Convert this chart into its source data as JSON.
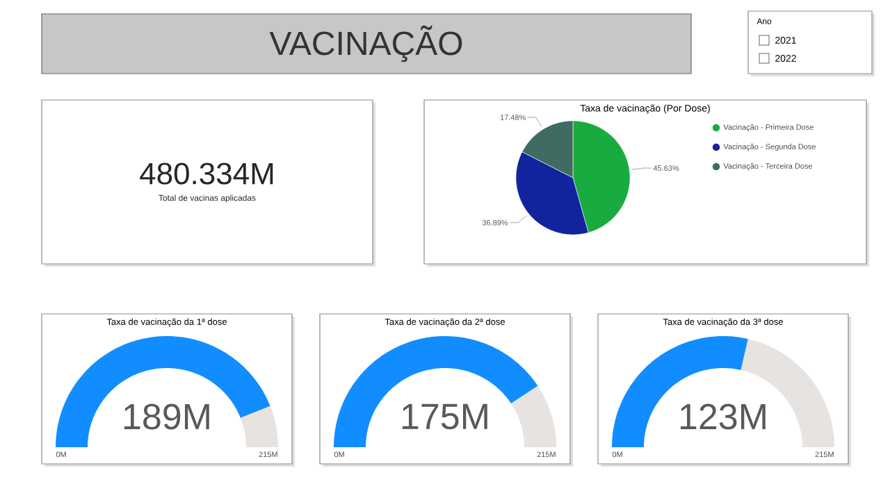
{
  "chart_data": [
    {
      "type": "other",
      "title": "VACINAÇÃO"
    },
    {
      "type": "other",
      "title": "Ano",
      "categories": [
        "2021",
        "2022"
      ]
    },
    {
      "type": "other",
      "annotations": [
        "480.334M",
        "Total de vacinas aplicadas"
      ]
    },
    {
      "type": "pie",
      "title": "Taxa de vacinação (Por Dose)",
      "categories": [
        "Vacinação - Primeira Dose",
        "Vacinação - Segunda Dose",
        "Vacinação - Terceira Dose"
      ],
      "values": [
        45.63,
        36.89,
        17.48
      ],
      "colors": [
        "#1aab40",
        "#12239e",
        "#3f6b63"
      ],
      "value_labels": [
        "45.63%",
        "36.89%",
        "17.48%"
      ],
      "legend": "right"
    },
    {
      "type": "donut",
      "title": "Taxa de vacinação da 1ª dose",
      "categories": [
        null,
        null
      ],
      "values": [
        189,
        26
      ],
      "colors": [
        "#118dff",
        "#e6e3e1"
      ],
      "value_labels": [
        "189M",
        null
      ],
      "annotations": [
        "0M",
        "215M"
      ]
    },
    {
      "type": "donut",
      "title": "Taxa de vacinação da 2ª dose",
      "categories": [
        null,
        null
      ],
      "values": [
        175,
        40
      ],
      "colors": [
        "#118dff",
        "#e6e3e1"
      ],
      "value_labels": [
        "175M",
        null
      ],
      "annotations": [
        "0M",
        "215M"
      ]
    },
    {
      "type": "donut",
      "title": "Taxa de vacinação da 3ª dose",
      "categories": [
        null,
        null
      ],
      "values": [
        123,
        92
      ],
      "colors": [
        "#118dff",
        "#e6e3e1"
      ],
      "value_labels": [
        "123M",
        null
      ],
      "annotations": [
        "0M",
        "215M"
      ]
    }
  ]
}
